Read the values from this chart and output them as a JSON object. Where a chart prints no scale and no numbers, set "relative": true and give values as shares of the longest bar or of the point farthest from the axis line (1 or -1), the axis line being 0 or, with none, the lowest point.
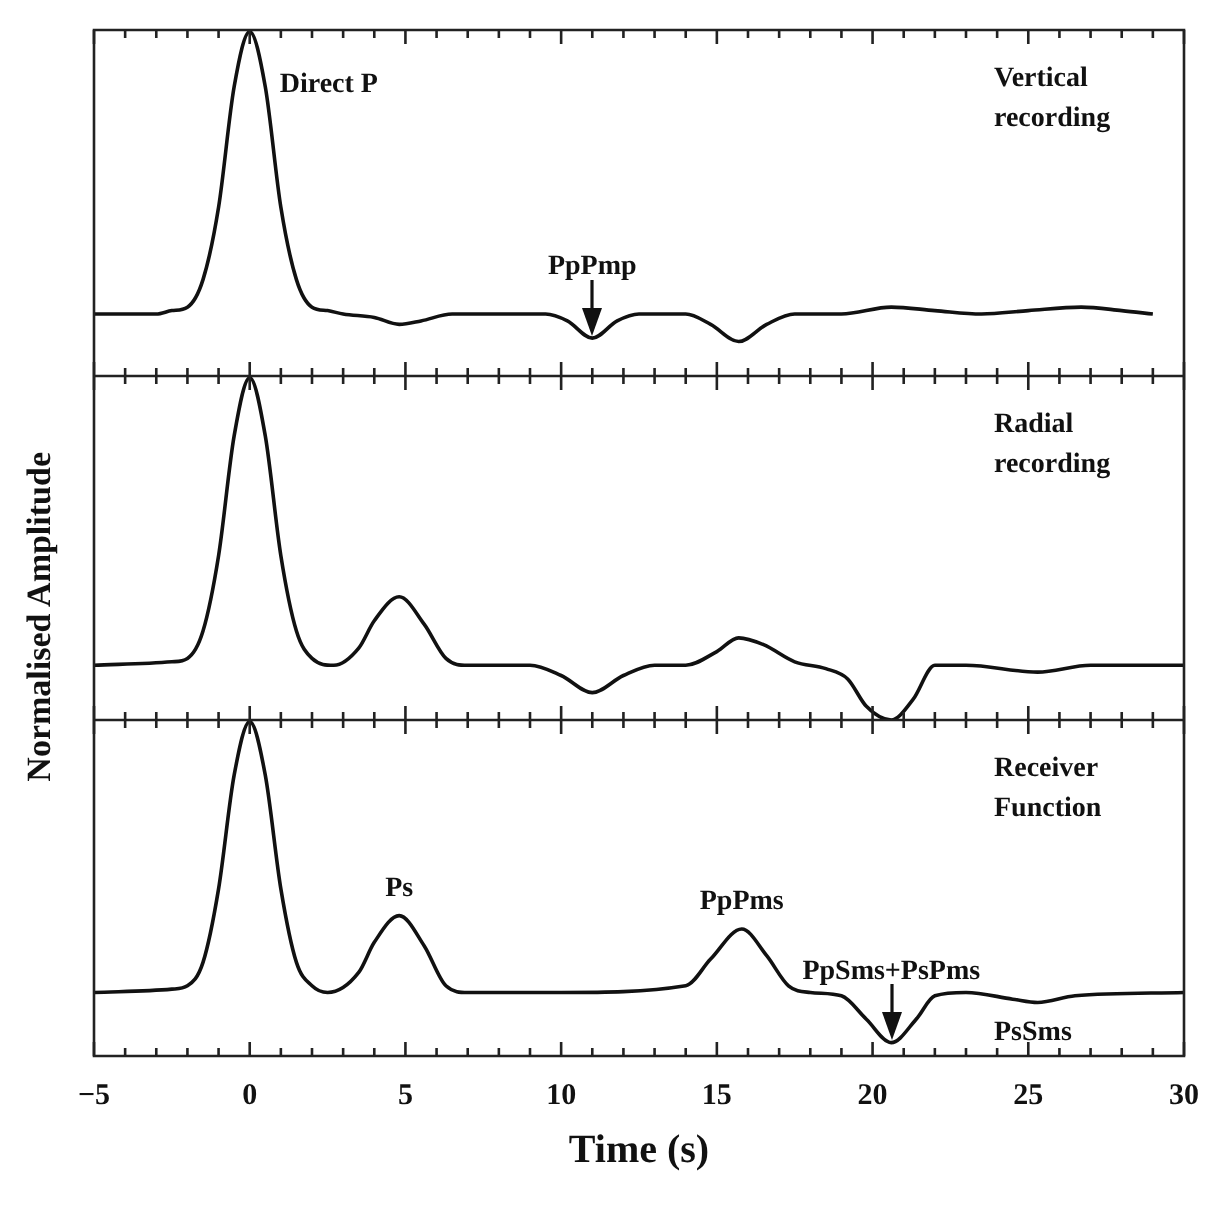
{
  "chart_data": [
    {
      "type": "line",
      "relative": true,
      "tick_labels": false,
      "xlim": [
        -5,
        30
      ],
      "series": [
        {
          "color": "#111111",
          "x": [
            -5,
            -3,
            -2.5,
            -2,
            -1.5,
            -1,
            -0.5,
            0,
            0.5,
            1,
            1.5,
            2,
            2.5,
            3,
            4,
            4.8,
            5.5,
            6.5,
            8,
            9.5,
            10.2,
            11,
            11.8,
            12.5,
            14,
            14.8,
            15.7,
            16.6,
            17.5,
            19,
            20.6,
            22,
            23.5,
            25,
            26.7,
            28,
            29
          ],
          "values": [
            0.18,
            0.18,
            0.19,
            0.2,
            0.28,
            0.49,
            0.84,
            1,
            0.84,
            0.49,
            0.28,
            0.2,
            0.19,
            0.18,
            0.17,
            0.15,
            0.16,
            0.18,
            0.18,
            0.18,
            0.16,
            0.11,
            0.16,
            0.18,
            0.18,
            0.15,
            0.1,
            0.15,
            0.18,
            0.18,
            0.2,
            0.19,
            0.18,
            0.19,
            0.2,
            0.19,
            0.18
          ]
        }
      ],
      "annotations": [
        "Vertical recording",
        {
          "text": "Direct P",
          "x": 0,
          "y": 1
        },
        {
          "text": "PpPmp",
          "x": 11,
          "y": 0.11
        }
      ]
    },
    {
      "type": "line",
      "relative": true,
      "tick_labels": false,
      "ylabel": "Normalised Amplitude",
      "xlim": [
        -5,
        30
      ],
      "series": [
        {
          "color": "#111111",
          "x": [
            -5,
            -2.5,
            -2,
            -1.5,
            -1,
            -0.5,
            0,
            0.5,
            1,
            1.5,
            2,
            2.7,
            3.5,
            4,
            4.8,
            5.6,
            6.3,
            7,
            9,
            10,
            11,
            12,
            13,
            14,
            15,
            15.7,
            16.5,
            17.5,
            18.5,
            19.2,
            19.8,
            20.6,
            21.3,
            22,
            23,
            25.3,
            27,
            30
          ],
          "values": [
            0.16,
            0.17,
            0.18,
            0.26,
            0.48,
            0.83,
            1,
            0.83,
            0.48,
            0.26,
            0.18,
            0.16,
            0.21,
            0.29,
            0.36,
            0.28,
            0.18,
            0.16,
            0.16,
            0.13,
            0.08,
            0.13,
            0.16,
            0.16,
            0.2,
            0.24,
            0.22,
            0.17,
            0.15,
            0.12,
            0.04,
            0,
            0.06,
            0.16,
            0.16,
            0.14,
            0.16,
            0.16
          ]
        }
      ],
      "annotations": [
        "Radial recording"
      ]
    },
    {
      "type": "line",
      "relative": true,
      "tick_labels": "x",
      "xlabel": "Time (s)",
      "xlim": [
        -5,
        30
      ],
      "xticks": [
        {
          "value": -5,
          "label": "−5"
        },
        {
          "value": -4,
          "label": null
        },
        {
          "value": -3,
          "label": null
        },
        {
          "value": -2,
          "label": null
        },
        {
          "value": -1,
          "label": null
        },
        0,
        {
          "value": 1,
          "label": null
        },
        {
          "value": 2,
          "label": null
        },
        {
          "value": 3,
          "label": null
        },
        {
          "value": 4,
          "label": null
        },
        5,
        {
          "value": 6,
          "label": null
        },
        {
          "value": 7,
          "label": null
        },
        {
          "value": 8,
          "label": null
        },
        {
          "value": 9,
          "label": null
        },
        10,
        {
          "value": 11,
          "label": null
        },
        {
          "value": 12,
          "label": null
        },
        {
          "value": 13,
          "label": null
        },
        {
          "value": 14,
          "label": null
        },
        15,
        {
          "value": 16,
          "label": null
        },
        {
          "value": 17,
          "label": null
        },
        {
          "value": 18,
          "label": null
        },
        {
          "value": 19,
          "label": null
        },
        20,
        {
          "value": 21,
          "label": null
        },
        {
          "value": 22,
          "label": null
        },
        {
          "value": 23,
          "label": null
        },
        {
          "value": 24,
          "label": null
        },
        25,
        {
          "value": 26,
          "label": null
        },
        {
          "value": 27,
          "label": null
        },
        {
          "value": 28,
          "label": null
        },
        {
          "value": 29,
          "label": null
        },
        30
      ],
      "series": [
        {
          "color": "#111111",
          "x": [
            -5,
            -2.5,
            -2,
            -1.5,
            -1,
            -0.5,
            0,
            0.5,
            1,
            1.5,
            2,
            2.5,
            3.5,
            4,
            4.8,
            5.6,
            6.3,
            7,
            10,
            14,
            14.8,
            15.8,
            16.6,
            17.3,
            18,
            19,
            19.8,
            20.6,
            21.4,
            22,
            23,
            24.5,
            25.3,
            26.5,
            30
          ],
          "values": [
            0.19,
            0.2,
            0.21,
            0.28,
            0.5,
            0.84,
            1,
            0.84,
            0.5,
            0.28,
            0.21,
            0.19,
            0.25,
            0.34,
            0.42,
            0.33,
            0.21,
            0.19,
            0.19,
            0.21,
            0.29,
            0.38,
            0.3,
            0.21,
            0.19,
            0.18,
            0.11,
            0.04,
            0.11,
            0.18,
            0.19,
            0.17,
            0.16,
            0.18,
            0.19
          ]
        }
      ],
      "annotations": [
        "Receiver Function",
        "PsSms",
        {
          "text": "Ps",
          "x": 4.8,
          "y": 0.42
        },
        {
          "text": "PpPms",
          "x": 15.8,
          "y": 0.38
        },
        {
          "text": "PpSms+PsPms",
          "x": 20.6,
          "y": 0.04
        }
      ]
    }
  ]
}
